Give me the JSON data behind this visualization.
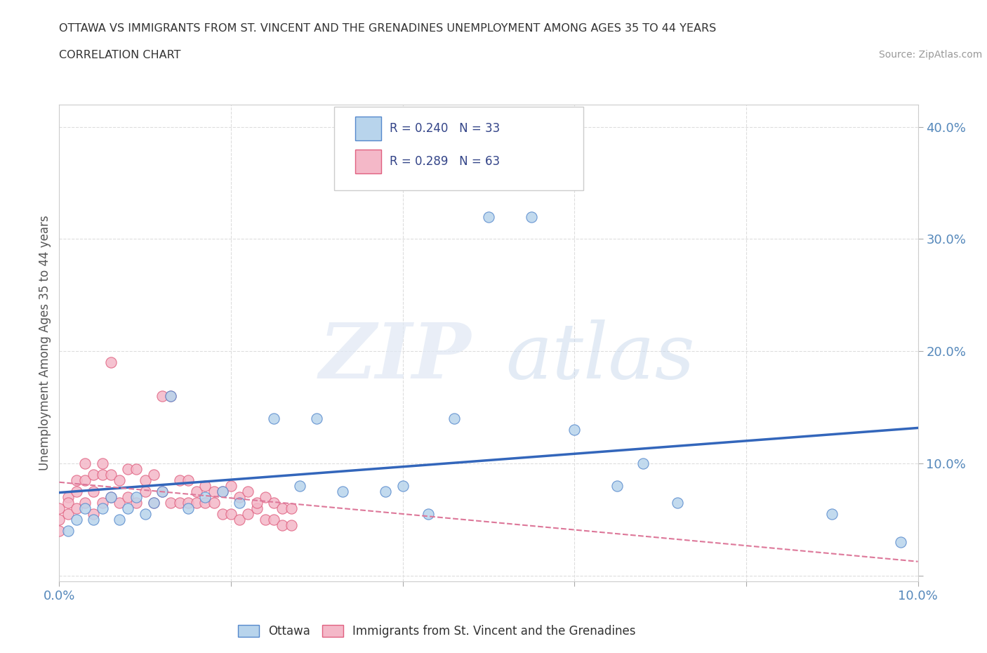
{
  "title_line1": "OTTAWA VS IMMIGRANTS FROM ST. VINCENT AND THE GRENADINES UNEMPLOYMENT AMONG AGES 35 TO 44 YEARS",
  "title_line2": "CORRELATION CHART",
  "source_text": "Source: ZipAtlas.com",
  "ylabel": "Unemployment Among Ages 35 to 44 years",
  "xlim": [
    0.0,
    0.1
  ],
  "ylim": [
    -0.005,
    0.42
  ],
  "xticks": [
    0.0,
    0.02,
    0.04,
    0.06,
    0.08,
    0.1
  ],
  "yticks": [
    0.0,
    0.1,
    0.2,
    0.3,
    0.4
  ],
  "ottawa_color": "#b8d4ec",
  "ottawa_edge": "#5588cc",
  "svg_color": "#f4b8c8",
  "svg_edge": "#e06080",
  "trendline_ottawa_color": "#3366bb",
  "trendline_svg_color": "#dd7799",
  "R_ottawa": 0.24,
  "N_ottawa": 33,
  "R_svg": 0.289,
  "N_svg": 63,
  "background_color": "#ffffff",
  "grid_color": "#dddddd",
  "ottawa_points": [
    [
      0.001,
      0.04
    ],
    [
      0.002,
      0.05
    ],
    [
      0.003,
      0.06
    ],
    [
      0.004,
      0.05
    ],
    [
      0.005,
      0.06
    ],
    [
      0.006,
      0.07
    ],
    [
      0.007,
      0.05
    ],
    [
      0.008,
      0.06
    ],
    [
      0.009,
      0.07
    ],
    [
      0.01,
      0.055
    ],
    [
      0.011,
      0.065
    ],
    [
      0.012,
      0.075
    ],
    [
      0.013,
      0.16
    ],
    [
      0.015,
      0.06
    ],
    [
      0.017,
      0.07
    ],
    [
      0.019,
      0.075
    ],
    [
      0.021,
      0.065
    ],
    [
      0.025,
      0.14
    ],
    [
      0.028,
      0.08
    ],
    [
      0.03,
      0.14
    ],
    [
      0.033,
      0.075
    ],
    [
      0.038,
      0.075
    ],
    [
      0.04,
      0.08
    ],
    [
      0.043,
      0.055
    ],
    [
      0.046,
      0.14
    ],
    [
      0.05,
      0.32
    ],
    [
      0.055,
      0.32
    ],
    [
      0.06,
      0.13
    ],
    [
      0.065,
      0.08
    ],
    [
      0.068,
      0.1
    ],
    [
      0.072,
      0.065
    ],
    [
      0.09,
      0.055
    ],
    [
      0.098,
      0.03
    ]
  ],
  "svg_points": [
    [
      0.0,
      0.05
    ],
    [
      0.0,
      0.06
    ],
    [
      0.0,
      0.04
    ],
    [
      0.001,
      0.055
    ],
    [
      0.001,
      0.07
    ],
    [
      0.001,
      0.065
    ],
    [
      0.002,
      0.06
    ],
    [
      0.002,
      0.075
    ],
    [
      0.002,
      0.085
    ],
    [
      0.003,
      0.065
    ],
    [
      0.003,
      0.085
    ],
    [
      0.003,
      0.1
    ],
    [
      0.004,
      0.055
    ],
    [
      0.004,
      0.075
    ],
    [
      0.004,
      0.09
    ],
    [
      0.005,
      0.065
    ],
    [
      0.005,
      0.09
    ],
    [
      0.005,
      0.1
    ],
    [
      0.006,
      0.07
    ],
    [
      0.006,
      0.09
    ],
    [
      0.006,
      0.19
    ],
    [
      0.007,
      0.065
    ],
    [
      0.007,
      0.085
    ],
    [
      0.008,
      0.07
    ],
    [
      0.008,
      0.095
    ],
    [
      0.009,
      0.065
    ],
    [
      0.009,
      0.095
    ],
    [
      0.01,
      0.075
    ],
    [
      0.01,
      0.085
    ],
    [
      0.011,
      0.065
    ],
    [
      0.011,
      0.09
    ],
    [
      0.012,
      0.075
    ],
    [
      0.012,
      0.16
    ],
    [
      0.013,
      0.065
    ],
    [
      0.013,
      0.16
    ],
    [
      0.014,
      0.065
    ],
    [
      0.014,
      0.085
    ],
    [
      0.015,
      0.065
    ],
    [
      0.015,
      0.085
    ],
    [
      0.016,
      0.065
    ],
    [
      0.016,
      0.075
    ],
    [
      0.017,
      0.065
    ],
    [
      0.017,
      0.08
    ],
    [
      0.018,
      0.065
    ],
    [
      0.018,
      0.075
    ],
    [
      0.019,
      0.055
    ],
    [
      0.019,
      0.075
    ],
    [
      0.02,
      0.055
    ],
    [
      0.02,
      0.08
    ],
    [
      0.021,
      0.05
    ],
    [
      0.021,
      0.07
    ],
    [
      0.022,
      0.055
    ],
    [
      0.022,
      0.075
    ],
    [
      0.023,
      0.06
    ],
    [
      0.023,
      0.065
    ],
    [
      0.024,
      0.05
    ],
    [
      0.024,
      0.07
    ],
    [
      0.025,
      0.05
    ],
    [
      0.025,
      0.065
    ],
    [
      0.026,
      0.045
    ],
    [
      0.026,
      0.06
    ],
    [
      0.027,
      0.045
    ],
    [
      0.027,
      0.06
    ]
  ]
}
